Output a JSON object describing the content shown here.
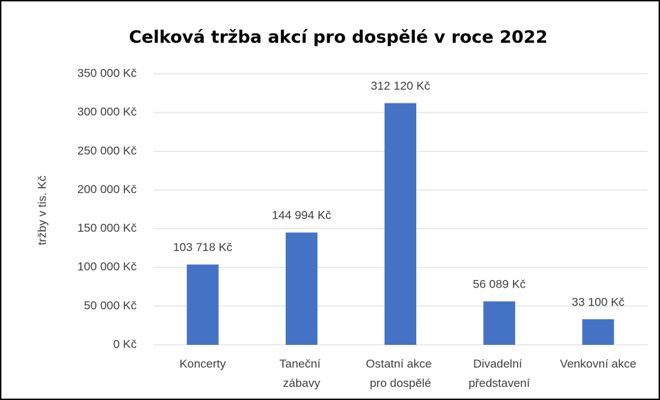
{
  "chart_data": {
    "type": "bar",
    "title": "Celková tržba akcí pro dospělé v roce 2022",
    "ylabel": "tržby v tis. Kč",
    "categories": [
      "Koncerty",
      "Taneční zábavy",
      "Ostatní akce pro dospělé",
      "Divadelní představení",
      "Venkovní akce"
    ],
    "values": [
      103718,
      144994,
      312120,
      56089,
      33100
    ],
    "value_labels": [
      "103 718 Kč",
      "144 994 Kč",
      "312 120 Kč",
      "56 089 Kč",
      "33 100 Kč"
    ],
    "color": "#4472c4",
    "ylim": [
      0,
      350000
    ],
    "yticks": [
      {
        "value": 0,
        "label": "0 Kč"
      },
      {
        "value": 50000,
        "label": "50 000 Kč"
      },
      {
        "value": 100000,
        "label": "100 000 Kč"
      },
      {
        "value": 150000,
        "label": "150 000 Kč"
      },
      {
        "value": 200000,
        "label": "200 000 Kč"
      },
      {
        "value": 250000,
        "label": "250 000 Kč"
      },
      {
        "value": 300000,
        "label": "300 000 Kč"
      },
      {
        "value": 350000,
        "label": "350 000 Kč"
      }
    ],
    "grid": true
  }
}
